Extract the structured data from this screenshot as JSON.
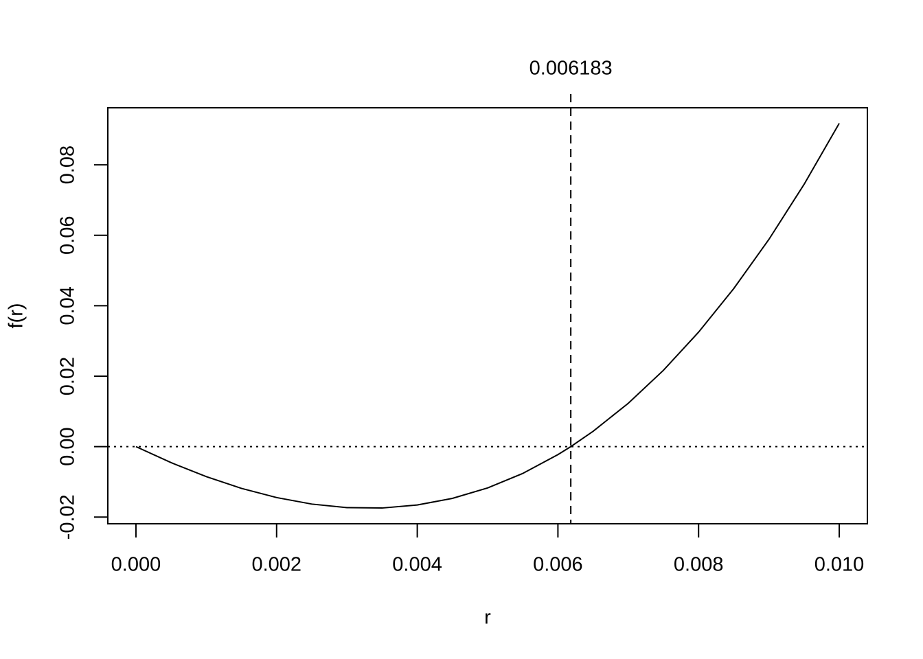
{
  "chart_data": {
    "type": "line",
    "x_label": "r",
    "y_label": "f(r)",
    "x": [
      0,
      0.0005,
      0.001,
      0.0015,
      0.002,
      0.0025,
      0.003,
      0.0035,
      0.004,
      0.0045,
      0.005,
      0.0055,
      0.006,
      0.006183,
      0.0065,
      0.007,
      0.0075,
      0.008,
      0.0085,
      0.009,
      0.0095,
      0.01
    ],
    "values": [
      0,
      -0.00455,
      -0.00852,
      -0.01185,
      -0.01446,
      -0.01631,
      -0.01732,
      -0.01743,
      -0.01657,
      -0.01469,
      -0.01173,
      -0.00761,
      -0.00227,
      0,
      0.00435,
      0.0123,
      0.02167,
      0.0325,
      0.04487,
      0.05883,
      0.07445,
      0.0918
    ],
    "color": "#000000",
    "xlim": [
      -0.0004,
      0.0104
    ],
    "ylim": [
      -0.0219,
      0.0962
    ],
    "xticks": [
      {
        "value": 0,
        "label": "0.000"
      },
      {
        "value": 0.002,
        "label": "0.002"
      },
      {
        "value": 0.004,
        "label": "0.004"
      },
      {
        "value": 0.006,
        "label": "0.006"
      },
      {
        "value": 0.008,
        "label": "0.008"
      },
      {
        "value": 0.01,
        "label": "0.010"
      }
    ],
    "yticks": [
      -0.02,
      {
        "value": 0,
        "label": "0.00"
      },
      0.02,
      0.04,
      0.06,
      0.08
    ],
    "vline": 0.006183,
    "hline": 0
  }
}
